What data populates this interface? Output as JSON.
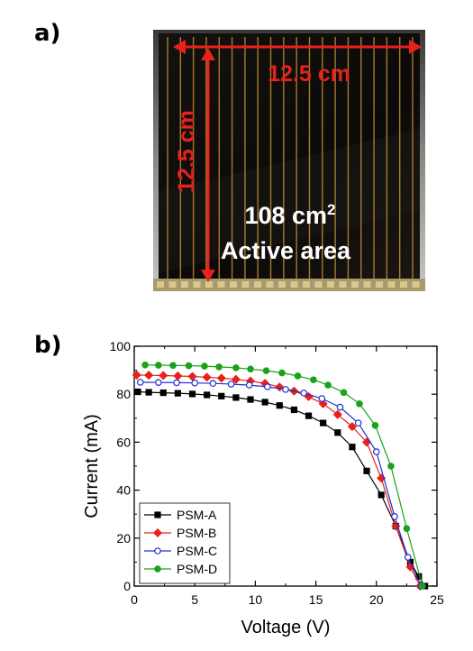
{
  "panels": {
    "a": "a)",
    "b": "b)"
  },
  "photo": {
    "width_label": "12.5 cm",
    "height_label": "12.5 cm",
    "area_value": "108 cm",
    "area_superscript": "2",
    "area_caption": "Active area"
  },
  "colors": {
    "annotation_red": "#e8211b",
    "PSM-A": "#000000",
    "PSM-B": "#e8211b",
    "PSM-C": "#1f2fd0",
    "PSM-D": "#1aa31a"
  },
  "chart_data": {
    "type": "line",
    "xlabel": "Voltage (V)",
    "ylabel": "Current (mA)",
    "xlim": [
      0,
      25
    ],
    "ylim": [
      0,
      100
    ],
    "xticks": [
      0,
      5,
      10,
      15,
      20,
      25
    ],
    "yticks": [
      0,
      20,
      40,
      60,
      80,
      100
    ],
    "grid": false,
    "legend_position": "bottom-left",
    "series": [
      {
        "name": "PSM-A",
        "marker": "square",
        "filled": true,
        "x": [
          0.3,
          1.2,
          2.4,
          3.6,
          4.8,
          6,
          7.2,
          8.4,
          9.6,
          10.8,
          12,
          13.2,
          14.4,
          15.6,
          16.8,
          18,
          19.2,
          20.4,
          21.6,
          22.8,
          23.5,
          24.0
        ],
        "y": [
          81,
          80.8,
          80.6,
          80.4,
          80.1,
          79.7,
          79.2,
          78.6,
          77.8,
          76.7,
          75.3,
          73.5,
          71,
          68,
          64,
          58,
          48,
          38,
          25,
          10,
          4,
          0
        ]
      },
      {
        "name": "PSM-B",
        "marker": "diamond",
        "filled": true,
        "x": [
          0.2,
          1.2,
          2.4,
          3.6,
          4.8,
          6,
          7.2,
          8.4,
          9.6,
          10.8,
          12,
          13.2,
          14.4,
          15.6,
          16.8,
          18,
          19.2,
          20.4,
          21.6,
          22.8,
          23.6
        ],
        "y": [
          88,
          87.9,
          87.8,
          87.6,
          87.4,
          87.1,
          86.7,
          86.2,
          85.5,
          84.5,
          83,
          81.3,
          79,
          76,
          71.5,
          66.5,
          60,
          45,
          25,
          8,
          0
        ]
      },
      {
        "name": "PSM-C",
        "marker": "circle",
        "filled": false,
        "x": [
          0.5,
          2,
          3.5,
          5,
          6.5,
          8,
          9.5,
          11,
          12.5,
          14,
          15.5,
          17,
          18.5,
          20,
          21.5,
          22.6,
          23.7
        ],
        "y": [
          85,
          84.9,
          84.8,
          84.7,
          84.5,
          84.2,
          83.8,
          83.1,
          82,
          80.5,
          78.2,
          74.6,
          68,
          56,
          29,
          12,
          0
        ]
      },
      {
        "name": "PSM-D",
        "marker": "circle",
        "filled": true,
        "x": [
          0.9,
          2,
          3.2,
          4.5,
          5.8,
          7,
          8.4,
          9.6,
          10.9,
          12.2,
          13.5,
          14.8,
          16.0,
          17.3,
          18.6,
          19.9,
          21.2,
          22.5,
          23.8
        ],
        "y": [
          92.2,
          92.1,
          92.0,
          91.9,
          91.7,
          91.4,
          91.0,
          90.5,
          89.8,
          88.9,
          87.6,
          86.0,
          83.8,
          80.7,
          76.0,
          67,
          50,
          24,
          0
        ]
      }
    ]
  }
}
